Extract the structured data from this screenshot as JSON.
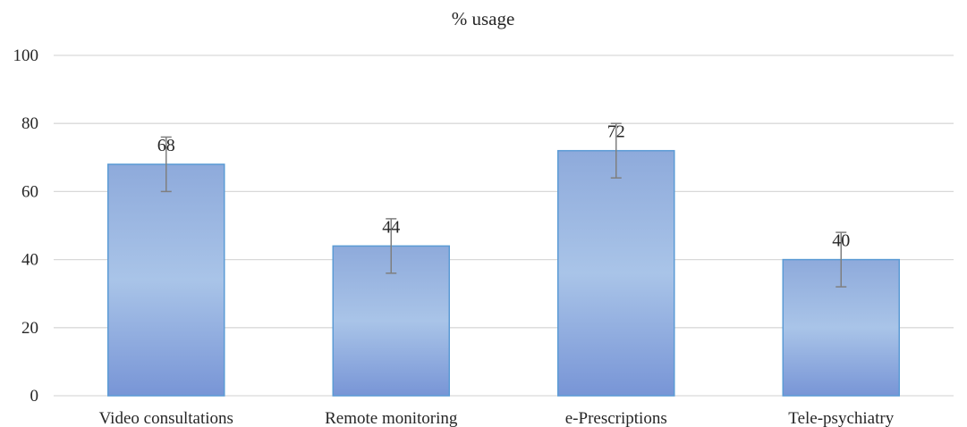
{
  "chart_data": {
    "type": "bar",
    "title": "% usage",
    "categories": [
      "Video consultations",
      "Remote monitoring",
      "e-Prescriptions",
      "Tele-psychiatry"
    ],
    "series": [
      {
        "values": [
          68,
          44,
          72,
          40
        ],
        "error_plus": [
          8,
          8,
          8,
          8
        ],
        "error_minus": [
          8,
          8,
          8,
          8
        ]
      }
    ],
    "data_labels": [
      "68",
      "44",
      "72",
      "40"
    ],
    "ylim": [
      0,
      100
    ],
    "yticks": [
      0,
      20,
      40,
      60,
      80,
      100
    ],
    "ytick_labels": [
      "0",
      "20",
      "40",
      "60",
      "80",
      "100"
    ],
    "grid": true,
    "legend": "none",
    "bar_color_top": "#8eaadb",
    "bar_color_mid": "#a9c4e8",
    "bar_color_bottom": "#7895d6",
    "bar_border_color": "#5b9bd5",
    "error_bar_color": "#7f7f7f",
    "grid_color": "#d9d9d9"
  }
}
